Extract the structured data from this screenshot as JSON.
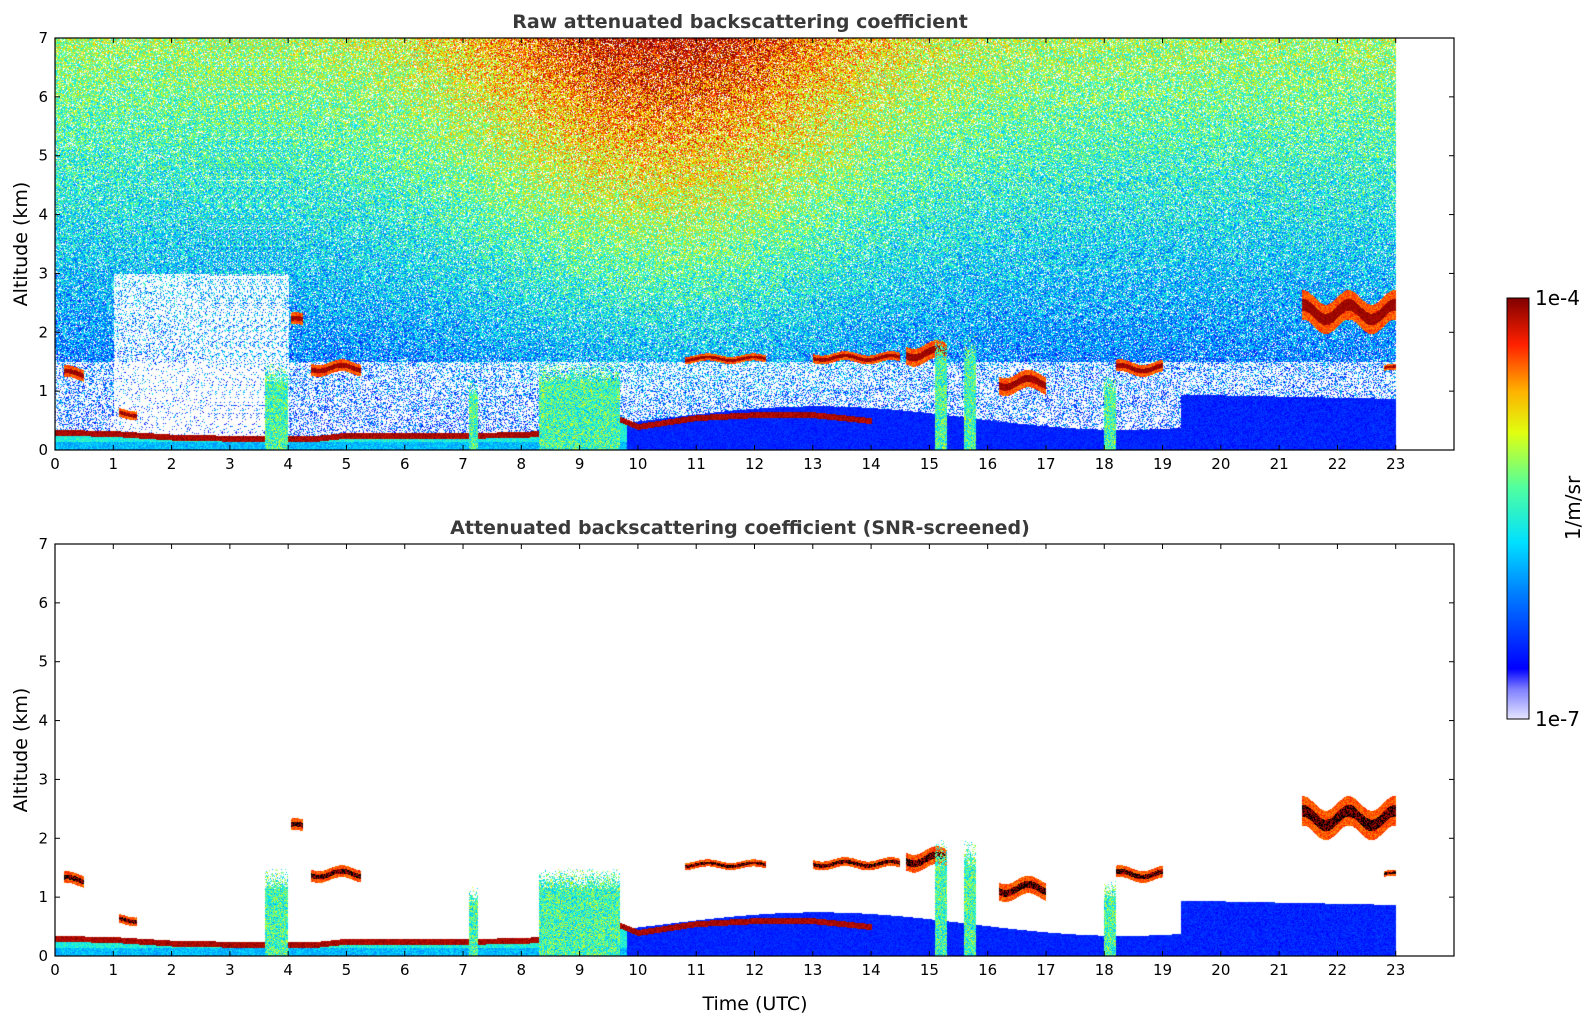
{
  "chart_data": [
    {
      "type": "heatmap",
      "title": "Raw attenuated backscattering coefficient",
      "xlabel": "",
      "ylabel": "Altitude (km)",
      "xlim": [
        0,
        24
      ],
      "ylim": [
        0,
        7
      ],
      "xticks": [
        "0",
        "1",
        "2",
        "3",
        "4",
        "5",
        "6",
        "7",
        "8",
        "9",
        "10",
        "11",
        "12",
        "13",
        "14",
        "15",
        "16",
        "17",
        "18",
        "19",
        "20",
        "21",
        "22",
        "23"
      ],
      "yticks": [
        "0",
        "1",
        "2",
        "3",
        "4",
        "5",
        "6",
        "7"
      ],
      "data_end_time": 23,
      "noise": true,
      "features": [
        {
          "kind": "boundary_layer_top",
          "points": [
            [
              0.0,
              0.3
            ],
            [
              1,
              0.28
            ],
            [
              2,
              0.22
            ],
            [
              3,
              0.2
            ],
            [
              3.8,
              0.2
            ],
            [
              4.5,
              0.2
            ],
            [
              5,
              0.25
            ],
            [
              6,
              0.25
            ],
            [
              7,
              0.25
            ],
            [
              8,
              0.26
            ],
            [
              8.5,
              0.3
            ],
            [
              9,
              0.75
            ],
            [
              9.5,
              0.6
            ],
            [
              10,
              0.4
            ],
            [
              11,
              0.55
            ],
            [
              12,
              0.6
            ],
            [
              13,
              0.6
            ],
            [
              14,
              0.5
            ]
          ]
        },
        {
          "kind": "cloud",
          "x0": 0.15,
          "x1": 0.5,
          "y0": 1.2,
          "y1": 1.4
        },
        {
          "kind": "cloud",
          "x0": 1.1,
          "x1": 1.4,
          "y0": 0.55,
          "y1": 0.7
        },
        {
          "kind": "cloud",
          "x0": 4.05,
          "x1": 4.25,
          "y0": 2.1,
          "y1": 2.3
        },
        {
          "kind": "cloud",
          "x0": 4.4,
          "x1": 5.25,
          "y0": 1.3,
          "y1": 1.5
        },
        {
          "kind": "cloud",
          "x0": 10.8,
          "x1": 12.2,
          "y0": 1.5,
          "y1": 1.62
        },
        {
          "kind": "cloud",
          "x0": 13.0,
          "x1": 14.5,
          "y0": 1.5,
          "y1": 1.65
        },
        {
          "kind": "cloud",
          "x0": 14.6,
          "x1": 15.3,
          "y0": 1.5,
          "y1": 1.8
        },
        {
          "kind": "cloud",
          "x0": 16.2,
          "x1": 17.0,
          "y0": 1.0,
          "y1": 1.3
        },
        {
          "kind": "cloud",
          "x0": 18.2,
          "x1": 19.0,
          "y0": 1.3,
          "y1": 1.5
        },
        {
          "kind": "cloud",
          "x0": 21.4,
          "x1": 23.0,
          "y0": 2.1,
          "y1": 2.6
        },
        {
          "kind": "cloud",
          "x0": 22.8,
          "x1": 23.0,
          "y0": 1.35,
          "y1": 1.45
        },
        {
          "kind": "aerosol_column",
          "x0": 3.6,
          "x1": 4.0,
          "y0": 0,
          "y1": 1.5
        },
        {
          "kind": "aerosol_column",
          "x0": 7.1,
          "x1": 7.25,
          "y0": 0,
          "y1": 1.2
        },
        {
          "kind": "aerosol_column",
          "x0": 8.3,
          "x1": 9.7,
          "y0": 0,
          "y1": 1.5
        },
        {
          "kind": "aerosol_column",
          "x0": 15.1,
          "x1": 15.3,
          "y0": 0,
          "y1": 2.0
        },
        {
          "kind": "aerosol_column",
          "x0": 15.6,
          "x1": 15.8,
          "y0": 0,
          "y1": 2.0
        },
        {
          "kind": "aerosol_column",
          "x0": 18.0,
          "x1": 18.2,
          "y0": 0,
          "y1": 1.3
        }
      ]
    },
    {
      "type": "heatmap",
      "title": "Attenuated backscattering coefficient (SNR-screened)",
      "xlabel": "Time (UTC)",
      "ylabel": "Altitude (km)",
      "xlim": [
        0,
        24
      ],
      "ylim": [
        0,
        7
      ],
      "xticks": [
        "0",
        "1",
        "2",
        "3",
        "4",
        "5",
        "6",
        "7",
        "8",
        "9",
        "10",
        "11",
        "12",
        "13",
        "14",
        "15",
        "16",
        "17",
        "18",
        "19",
        "20",
        "21",
        "22",
        "23"
      ],
      "yticks": [
        "0",
        "1",
        "2",
        "3",
        "4",
        "5",
        "6",
        "7"
      ],
      "data_end_time": 23,
      "noise": false,
      "features": [
        {
          "kind": "boundary_layer_top",
          "points": [
            [
              0.0,
              0.3
            ],
            [
              1,
              0.28
            ],
            [
              2,
              0.22
            ],
            [
              3,
              0.2
            ],
            [
              3.8,
              0.2
            ],
            [
              4.5,
              0.2
            ],
            [
              5,
              0.25
            ],
            [
              6,
              0.25
            ],
            [
              7,
              0.25
            ],
            [
              8,
              0.26
            ],
            [
              8.5,
              0.3
            ],
            [
              9,
              0.75
            ],
            [
              9.5,
              0.6
            ],
            [
              10,
              0.4
            ],
            [
              11,
              0.55
            ],
            [
              12,
              0.6
            ],
            [
              13,
              0.6
            ],
            [
              14,
              0.5
            ]
          ]
        },
        {
          "kind": "cloud",
          "x0": 0.15,
          "x1": 0.5,
          "y0": 1.2,
          "y1": 1.4
        },
        {
          "kind": "cloud",
          "x0": 1.1,
          "x1": 1.4,
          "y0": 0.55,
          "y1": 0.7
        },
        {
          "kind": "cloud",
          "x0": 4.05,
          "x1": 4.25,
          "y0": 2.1,
          "y1": 2.3
        },
        {
          "kind": "cloud",
          "x0": 4.4,
          "x1": 5.25,
          "y0": 1.3,
          "y1": 1.5
        },
        {
          "kind": "cloud",
          "x0": 10.8,
          "x1": 12.2,
          "y0": 1.5,
          "y1": 1.62
        },
        {
          "kind": "cloud",
          "x0": 13.0,
          "x1": 14.5,
          "y0": 1.5,
          "y1": 1.65
        },
        {
          "kind": "cloud",
          "x0": 14.6,
          "x1": 15.3,
          "y0": 1.5,
          "y1": 1.8
        },
        {
          "kind": "cloud",
          "x0": 16.2,
          "x1": 17.0,
          "y0": 1.0,
          "y1": 1.3
        },
        {
          "kind": "cloud",
          "x0": 18.2,
          "x1": 19.0,
          "y0": 1.3,
          "y1": 1.5
        },
        {
          "kind": "cloud",
          "x0": 21.4,
          "x1": 23.0,
          "y0": 2.1,
          "y1": 2.6
        },
        {
          "kind": "cloud",
          "x0": 22.8,
          "x1": 23.0,
          "y0": 1.35,
          "y1": 1.45
        },
        {
          "kind": "aerosol_column",
          "x0": 3.6,
          "x1": 4.0,
          "y0": 0,
          "y1": 1.5
        },
        {
          "kind": "aerosol_column",
          "x0": 7.1,
          "x1": 7.25,
          "y0": 0,
          "y1": 1.2
        },
        {
          "kind": "aerosol_column",
          "x0": 8.3,
          "x1": 9.7,
          "y0": 0,
          "y1": 1.5
        },
        {
          "kind": "aerosol_column",
          "x0": 15.1,
          "x1": 15.3,
          "y0": 0,
          "y1": 2.0
        },
        {
          "kind": "aerosol_column",
          "x0": 15.6,
          "x1": 15.8,
          "y0": 0,
          "y1": 2.0
        },
        {
          "kind": "aerosol_column",
          "x0": 18.0,
          "x1": 18.2,
          "y0": 0,
          "y1": 1.3
        }
      ]
    }
  ],
  "colorbar": {
    "label": "1/m/sr",
    "max_label": "1e-4",
    "min_label": "1e-7",
    "scale": "log",
    "range": [
      1e-07,
      0.0001
    ],
    "colormap": "jet"
  }
}
